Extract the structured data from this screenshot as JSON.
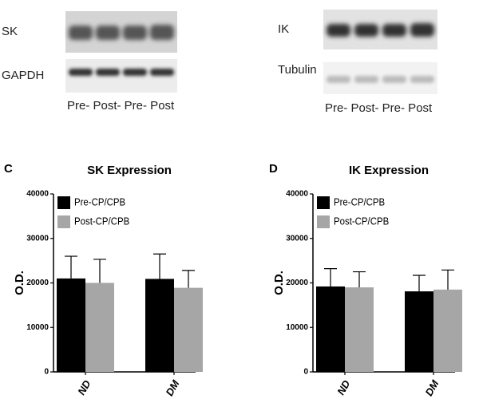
{
  "blots": {
    "left": {
      "labels": [
        "SK",
        "GAPDH"
      ],
      "lanes": "Pre- Post- Pre- Post"
    },
    "right": {
      "labels": [
        "IK",
        "Tubulin"
      ],
      "lanes": "Pre- Post- Pre- Post"
    }
  },
  "chart_data": [
    {
      "type": "bar",
      "panel": "C",
      "title": "SK Expression",
      "ylabel": "O.D.",
      "categories": [
        "ND",
        "DM"
      ],
      "series": [
        {
          "name": "Pre-CP/CPB",
          "color": "#000000",
          "values": [
            21000,
            20900
          ],
          "errors": [
            5000,
            5600
          ]
        },
        {
          "name": "Post-CP/CPB",
          "color": "#a6a6a6",
          "values": [
            20000,
            18900
          ],
          "errors": [
            5300,
            3900
          ]
        }
      ],
      "ylim": [
        0,
        40000
      ],
      "yticks": [
        0,
        10000,
        20000,
        30000,
        40000
      ],
      "legend": "upper left"
    },
    {
      "type": "bar",
      "panel": "D",
      "title": "IK Expression",
      "ylabel": "O.D.",
      "categories": [
        "ND",
        "DM"
      ],
      "series": [
        {
          "name": "Pre-CP/CPB",
          "color": "#000000",
          "values": [
            19200,
            18100
          ],
          "errors": [
            4000,
            3600
          ]
        },
        {
          "name": "Post-CP/CPB",
          "color": "#a6a6a6",
          "values": [
            19000,
            18500
          ],
          "errors": [
            3500,
            4400
          ]
        }
      ],
      "ylim": [
        0,
        40000
      ],
      "yticks": [
        0,
        10000,
        20000,
        30000,
        40000
      ],
      "legend": "upper left"
    }
  ]
}
